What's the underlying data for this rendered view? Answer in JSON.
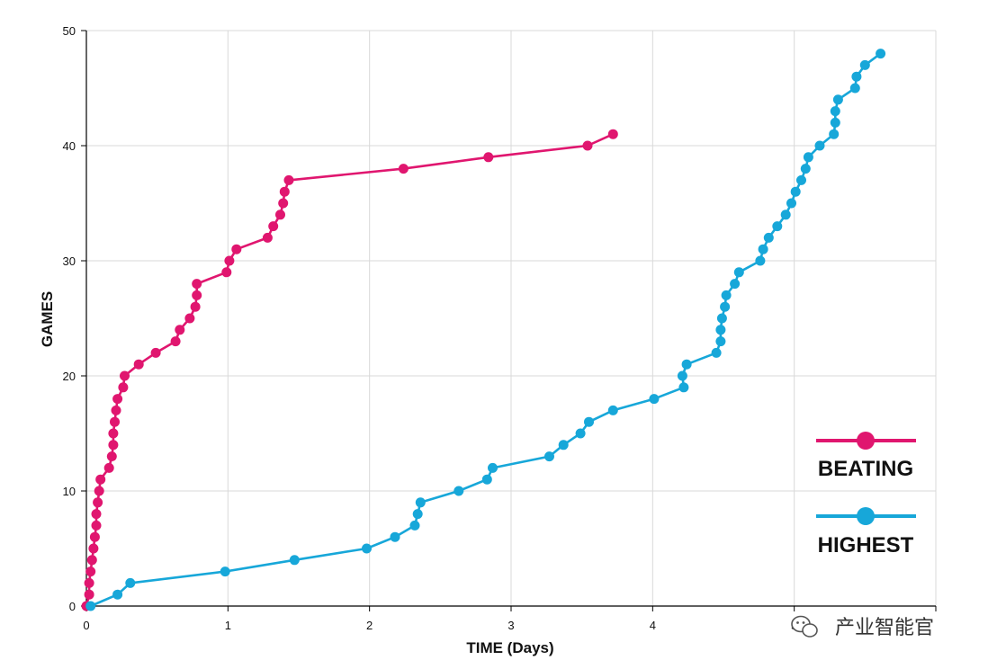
{
  "chart_data": {
    "type": "line",
    "xlabel": "TIME (Days)",
    "ylabel": "GAMES",
    "xlim": [
      0,
      6
    ],
    "ylim": [
      0,
      50
    ],
    "x_ticks": [
      "0",
      "1",
      "2",
      "3",
      "4",
      "5"
    ],
    "y_ticks": [
      "0",
      "10",
      "20",
      "30",
      "40",
      "50"
    ],
    "grid": true,
    "legend_position": "bottom-right",
    "series": [
      {
        "name": "BEATING",
        "color": "#e0166f",
        "points": [
          [
            0.0,
            0
          ],
          [
            0.02,
            1
          ],
          [
            0.02,
            2
          ],
          [
            0.03,
            3
          ],
          [
            0.04,
            4
          ],
          [
            0.05,
            5
          ],
          [
            0.06,
            6
          ],
          [
            0.07,
            7
          ],
          [
            0.07,
            8
          ],
          [
            0.08,
            9
          ],
          [
            0.09,
            10
          ],
          [
            0.1,
            11
          ],
          [
            0.16,
            12
          ],
          [
            0.18,
            13
          ],
          [
            0.19,
            14
          ],
          [
            0.19,
            15
          ],
          [
            0.2,
            16
          ],
          [
            0.21,
            17
          ],
          [
            0.22,
            18
          ],
          [
            0.26,
            19
          ],
          [
            0.27,
            20
          ],
          [
            0.37,
            21
          ],
          [
            0.49,
            22
          ],
          [
            0.63,
            23
          ],
          [
            0.66,
            24
          ],
          [
            0.73,
            25
          ],
          [
            0.77,
            26
          ],
          [
            0.78,
            27
          ],
          [
            0.78,
            28
          ],
          [
            0.99,
            29
          ],
          [
            1.01,
            30
          ],
          [
            1.06,
            31
          ],
          [
            1.28,
            32
          ],
          [
            1.32,
            33
          ],
          [
            1.37,
            34
          ],
          [
            1.39,
            35
          ],
          [
            1.4,
            36
          ],
          [
            1.43,
            37
          ],
          [
            2.24,
            38
          ],
          [
            2.84,
            39
          ],
          [
            3.54,
            40
          ],
          [
            3.72,
            41
          ]
        ]
      },
      {
        "name": "HIGHEST",
        "color": "#17a7d9",
        "points": [
          [
            0.03,
            0
          ],
          [
            0.22,
            1
          ],
          [
            0.31,
            2
          ],
          [
            0.98,
            3
          ],
          [
            1.47,
            4
          ],
          [
            1.98,
            5
          ],
          [
            2.18,
            6
          ],
          [
            2.32,
            7
          ],
          [
            2.34,
            8
          ],
          [
            2.36,
            9
          ],
          [
            2.63,
            10
          ],
          [
            2.83,
            11
          ],
          [
            2.87,
            12
          ],
          [
            3.27,
            13
          ],
          [
            3.37,
            14
          ],
          [
            3.49,
            15
          ],
          [
            3.55,
            16
          ],
          [
            3.72,
            17
          ],
          [
            4.01,
            18
          ],
          [
            4.22,
            19
          ],
          [
            4.21,
            20
          ],
          [
            4.24,
            21
          ],
          [
            4.45,
            22
          ],
          [
            4.48,
            23
          ],
          [
            4.48,
            24
          ],
          [
            4.49,
            25
          ],
          [
            4.51,
            26
          ],
          [
            4.52,
            27
          ],
          [
            4.58,
            28
          ],
          [
            4.61,
            29
          ],
          [
            4.76,
            30
          ],
          [
            4.78,
            31
          ],
          [
            4.82,
            32
          ],
          [
            4.88,
            33
          ],
          [
            4.94,
            34
          ],
          [
            4.98,
            35
          ],
          [
            5.01,
            36
          ],
          [
            5.05,
            37
          ],
          [
            5.08,
            38
          ],
          [
            5.1,
            39
          ],
          [
            5.18,
            40
          ],
          [
            5.28,
            41
          ],
          [
            5.29,
            42
          ],
          [
            5.29,
            43
          ],
          [
            5.31,
            44
          ],
          [
            5.43,
            45
          ],
          [
            5.44,
            46
          ],
          [
            5.5,
            47
          ],
          [
            5.61,
            48
          ]
        ]
      }
    ]
  },
  "watermark": {
    "text": "产业智能官",
    "icon": "wechat-icon"
  }
}
